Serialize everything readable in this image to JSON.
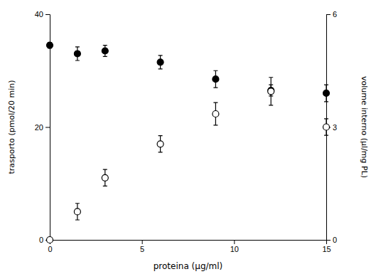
{
  "chart_data": {
    "type": "scatter",
    "xlabel": "proteina (μg/ml)",
    "ylabel": "trasporto (pmol/20 min)",
    "y2label": "volume interno (μl/mg PL)",
    "x": [
      0,
      1.5,
      3,
      6,
      9,
      12,
      15
    ],
    "xlim": [
      0,
      15
    ],
    "xticks": [
      0,
      5,
      10,
      15
    ],
    "ylim": [
      0,
      40
    ],
    "yticks": [
      0,
      20,
      40
    ],
    "y2lim": [
      0,
      6
    ],
    "y2ticks": [
      0,
      3,
      6
    ],
    "series": [
      {
        "values": [
          34.5,
          33.0,
          33.5,
          31.5,
          28.5,
          26.5,
          26.0
        ],
        "errors": [
          0.5,
          1.2,
          1.0,
          1.2,
          1.5,
          1.0,
          1.5
        ],
        "color": "#000000",
        "marker": "circle"
      },
      {
        "values": [
          0.0,
          0.75,
          1.65,
          2.55,
          3.35,
          3.95,
          3.0
        ],
        "errors": [
          0.0,
          0.22,
          0.22,
          0.22,
          0.3,
          0.37,
          0.22
        ],
        "color": "#000000",
        "marker": "circle-open",
        "axis": "y2"
      }
    ]
  }
}
